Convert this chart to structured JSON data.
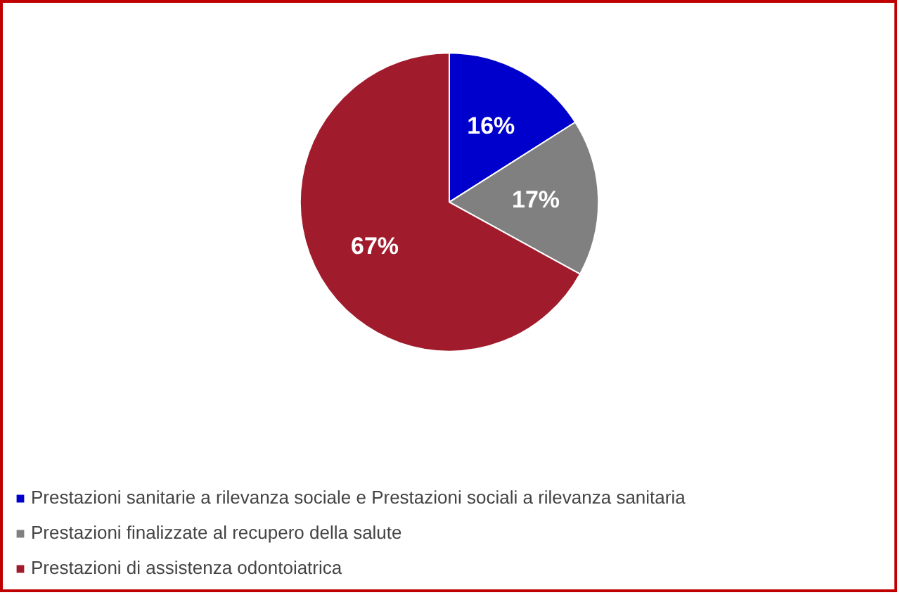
{
  "chart_data": {
    "type": "pie",
    "categories": [
      "Prestazioni sanitarie a rilevanza sociale e Prestazioni sociali a rilevanza sanitaria",
      "Prestazioni finalizzate al recupero della salute",
      "Prestazioni di assistenza odontoiatrica"
    ],
    "values": [
      16,
      17,
      67
    ],
    "colors": [
      "#0000cc",
      "#808080",
      "#a01c2c"
    ],
    "value_labels": [
      "16%",
      "17%",
      "67%"
    ],
    "legend": "bottom"
  }
}
